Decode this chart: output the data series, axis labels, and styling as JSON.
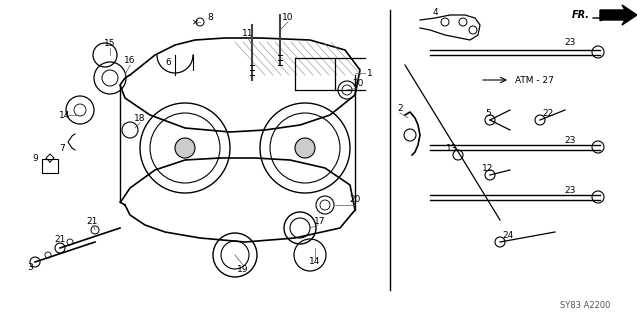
{
  "title": "",
  "bg_color": "#ffffff",
  "diagram_code": "SY83 A2200",
  "fr_label": "FR.",
  "atm_label": "ATM - 27",
  "part_numbers": [
    1,
    2,
    3,
    4,
    5,
    6,
    7,
    8,
    9,
    10,
    11,
    12,
    13,
    14,
    15,
    16,
    17,
    18,
    19,
    20,
    21,
    22,
    23,
    24
  ],
  "fig_size": [
    6.37,
    3.2
  ],
  "dpi": 100
}
